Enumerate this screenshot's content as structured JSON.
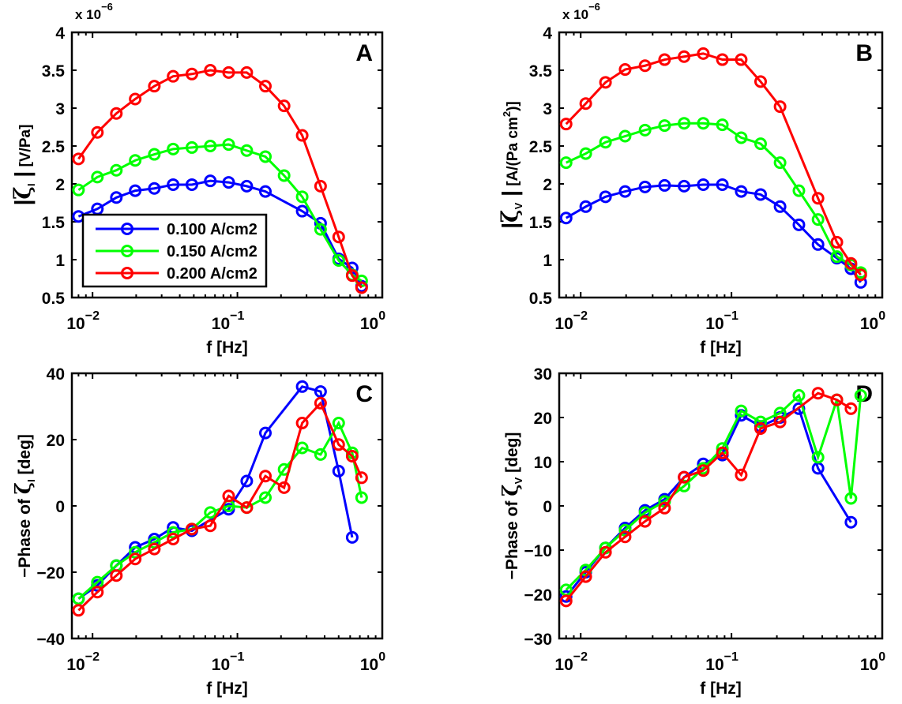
{
  "chart_data": [
    {
      "panel": "A",
      "type": "line",
      "xscale": "log",
      "xlabel": "f [Hz]",
      "ylabel": "|ζI| [V/Pa]",
      "ylabel_parts": {
        "symbol": "ζ",
        "sub": "I",
        "unit": "[V/Pa]"
      },
      "y_multiplier": "x 10^-6",
      "xlim": [
        0.0072,
        1.0
      ],
      "ylim": [
        0.5,
        4
      ],
      "yticks": [
        0.5,
        1,
        1.5,
        2,
        2.5,
        3,
        3.5,
        4
      ],
      "ytick_labels": [
        "0.5",
        "1",
        "1.5",
        "2",
        "2.5",
        "3",
        "3.5",
        "4"
      ],
      "xticks": [
        0.01,
        0.1,
        1
      ],
      "xtick_labels": [
        {
          "base": "10",
          "exp": "-2"
        },
        {
          "base": "10",
          "exp": "-1"
        },
        {
          "base": "10",
          "exp": "0"
        }
      ],
      "legend": {
        "placement": "lower-left",
        "entries": [
          "0.100 A/cm2",
          "0.150 A/cm2",
          "0.200 A/cm2"
        ]
      },
      "series": [
        {
          "name": "0.100 A/cm2",
          "color": "#0000ff",
          "x": [
            0.008,
            0.0108,
            0.0146,
            0.0197,
            0.0267,
            0.036,
            0.0485,
            0.065,
            0.087,
            0.116,
            0.156,
            0.28,
            0.375,
            0.5,
            0.62,
            0.72
          ],
          "y": [
            1.57,
            1.67,
            1.82,
            1.91,
            1.94,
            1.99,
            1.99,
            2.04,
            2.02,
            1.97,
            1.9,
            1.64,
            1.48,
            1.01,
            0.89,
            0.65
          ]
        },
        {
          "name": "0.150 A/cm2",
          "color": "#00ff00",
          "x": [
            0.008,
            0.0108,
            0.0146,
            0.0197,
            0.0267,
            0.036,
            0.0485,
            0.065,
            0.087,
            0.116,
            0.156,
            0.21,
            0.28,
            0.375,
            0.5,
            0.62,
            0.72
          ],
          "y": [
            1.92,
            2.09,
            2.18,
            2.31,
            2.39,
            2.46,
            2.48,
            2.5,
            2.52,
            2.44,
            2.36,
            2.11,
            1.83,
            1.4,
            0.99,
            0.8,
            0.72
          ]
        },
        {
          "name": "0.200 A/cm2",
          "color": "#ff0000",
          "x": [
            0.008,
            0.0108,
            0.0146,
            0.0197,
            0.0267,
            0.036,
            0.0485,
            0.065,
            0.087,
            0.116,
            0.156,
            0.21,
            0.28,
            0.375,
            0.5,
            0.62,
            0.72
          ],
          "y": [
            2.33,
            2.68,
            2.93,
            3.12,
            3.29,
            3.42,
            3.45,
            3.5,
            3.47,
            3.47,
            3.29,
            3.03,
            2.64,
            1.97,
            1.3,
            0.79,
            0.63
          ]
        }
      ]
    },
    {
      "panel": "B",
      "type": "line",
      "xscale": "log",
      "xlabel": "f [Hz]",
      "ylabel": "|ζV| [A/(Pa cm2)]",
      "ylabel_parts": {
        "symbol": "ζ",
        "sub": "V",
        "unit": "[A/(Pa cm",
        "unit_sup": "2",
        "unit_end": ")]"
      },
      "y_multiplier": "x 10^-6",
      "xlim": [
        0.0072,
        1.0
      ],
      "ylim": [
        0.5,
        4
      ],
      "yticks": [
        0.5,
        1,
        1.5,
        2,
        2.5,
        3,
        3.5,
        4
      ],
      "ytick_labels": [
        "0.5",
        "1",
        "1.5",
        "2",
        "2.5",
        "3",
        "3.5",
        "4"
      ],
      "xticks": [
        0.01,
        0.1,
        1
      ],
      "xtick_labels": [
        {
          "base": "10",
          "exp": "-2"
        },
        {
          "base": "10",
          "exp": "-1"
        },
        {
          "base": "10",
          "exp": "0"
        }
      ],
      "series": [
        {
          "name": "0.100 A/cm2",
          "color": "#0000ff",
          "x": [
            0.008,
            0.0108,
            0.0146,
            0.0197,
            0.0267,
            0.036,
            0.0485,
            0.065,
            0.087,
            0.116,
            0.156,
            0.21,
            0.28,
            0.375,
            0.5,
            0.62,
            0.72
          ],
          "y": [
            1.55,
            1.7,
            1.83,
            1.9,
            1.96,
            1.98,
            1.97,
            1.99,
            1.99,
            1.9,
            1.86,
            1.7,
            1.46,
            1.2,
            1.02,
            0.88,
            0.7
          ]
        },
        {
          "name": "0.150 A/cm2",
          "color": "#00ff00",
          "x": [
            0.008,
            0.0108,
            0.0146,
            0.0197,
            0.0267,
            0.036,
            0.0485,
            0.065,
            0.087,
            0.116,
            0.156,
            0.21,
            0.28,
            0.375,
            0.5,
            0.62,
            0.72
          ],
          "y": [
            2.28,
            2.4,
            2.55,
            2.63,
            2.71,
            2.77,
            2.8,
            2.8,
            2.78,
            2.61,
            2.53,
            2.28,
            1.91,
            1.53,
            1.04,
            0.93,
            0.83
          ]
        },
        {
          "name": "0.200 A/cm2",
          "color": "#ff0000",
          "x": [
            0.008,
            0.0108,
            0.0146,
            0.0197,
            0.0267,
            0.036,
            0.0485,
            0.065,
            0.087,
            0.116,
            0.156,
            0.21,
            0.375,
            0.5,
            0.62,
            0.72
          ],
          "y": [
            2.79,
            3.06,
            3.34,
            3.51,
            3.56,
            3.64,
            3.68,
            3.72,
            3.64,
            3.64,
            3.35,
            3.02,
            1.81,
            1.23,
            0.95,
            0.8
          ]
        }
      ]
    },
    {
      "panel": "C",
      "type": "line",
      "xscale": "log",
      "xlabel": "f [Hz]",
      "ylabel": "-Phase of ζI [deg]",
      "ylabel_parts": {
        "prefix": "−Phase of ",
        "symbol": "ζ",
        "sub": "I",
        "unit": " [deg]"
      },
      "xlim": [
        0.0072,
        1.0
      ],
      "ylim": [
        -40,
        40
      ],
      "yticks": [
        -40,
        -20,
        0,
        20,
        40
      ],
      "ytick_labels": [
        "−40",
        "−20",
        "0",
        "20",
        "40"
      ],
      "xticks": [
        0.01,
        0.1,
        1
      ],
      "xtick_labels": [
        {
          "base": "10",
          "exp": "-2"
        },
        {
          "base": "10",
          "exp": "-1"
        },
        {
          "base": "10",
          "exp": "0"
        }
      ],
      "series": [
        {
          "name": "0.100 A/cm2",
          "color": "#0000ff",
          "x": [
            0.008,
            0.0108,
            0.0146,
            0.0197,
            0.0267,
            0.036,
            0.0485,
            0.087,
            0.116,
            0.156,
            0.28,
            0.375,
            0.5,
            0.62
          ],
          "y": [
            -28,
            -24,
            -18,
            -12.5,
            -10,
            -6.5,
            -7.5,
            -1,
            7.5,
            22,
            36,
            34.5,
            10.5,
            -9.5
          ]
        },
        {
          "name": "0.150 A/cm2",
          "color": "#00ff00",
          "x": [
            0.008,
            0.0108,
            0.0146,
            0.0197,
            0.0267,
            0.036,
            0.0485,
            0.065,
            0.087,
            0.116,
            0.156,
            0.21,
            0.28,
            0.375,
            0.5,
            0.62,
            0.72
          ],
          "y": [
            -28,
            -23,
            -18,
            -14,
            -11,
            -8,
            -7,
            -2,
            0,
            -0.5,
            2.5,
            11,
            17.5,
            15.5,
            25,
            16,
            2.5
          ]
        },
        {
          "name": "0.200 A/cm2",
          "color": "#ff0000",
          "x": [
            0.008,
            0.0108,
            0.0146,
            0.0197,
            0.0267,
            0.036,
            0.0485,
            0.065,
            0.087,
            0.116,
            0.156,
            0.21,
            0.28,
            0.375,
            0.5,
            0.62,
            0.72
          ],
          "y": [
            -31.5,
            -26,
            -21,
            -16,
            -13,
            -10,
            -7,
            -6,
            3,
            -0.5,
            9,
            5.5,
            25,
            31,
            18.5,
            15,
            8.5
          ]
        }
      ]
    },
    {
      "panel": "D",
      "type": "line",
      "xscale": "log",
      "xlabel": "f [Hz]",
      "ylabel": "-Phase of ζV [deg]",
      "ylabel_parts": {
        "prefix": "−Phase of ",
        "symbol": "ζ",
        "sub": "V",
        "unit": " [deg]"
      },
      "xlim": [
        0.0072,
        1.0
      ],
      "ylim": [
        -30,
        30
      ],
      "yticks": [
        -30,
        -20,
        -10,
        0,
        10,
        20,
        30
      ],
      "ytick_labels": [
        "−30",
        "−20",
        "−10",
        "0",
        "10",
        "20",
        "30"
      ],
      "xticks": [
        0.01,
        0.1,
        1
      ],
      "xtick_labels": [
        {
          "base": "10",
          "exp": "-2"
        },
        {
          "base": "10",
          "exp": "-1"
        },
        {
          "base": "10",
          "exp": "0"
        }
      ],
      "series": [
        {
          "name": "0.100 A/cm2",
          "color": "#0000ff",
          "x": [
            0.008,
            0.0108,
            0.0146,
            0.0197,
            0.0267,
            0.036,
            0.0485,
            0.065,
            0.087,
            0.116,
            0.156,
            0.21,
            0.28,
            0.375,
            0.62
          ],
          "y": [
            -20.5,
            -15,
            -9.5,
            -5,
            -1,
            1.5,
            6.5,
            9.5,
            11.5,
            20.5,
            18,
            20,
            22,
            8.5,
            -3.7
          ]
        },
        {
          "name": "0.150 A/cm2",
          "color": "#00ff00",
          "x": [
            0.008,
            0.0108,
            0.0146,
            0.0197,
            0.0267,
            0.036,
            0.0485,
            0.065,
            0.087,
            0.116,
            0.156,
            0.21,
            0.28,
            0.375,
            0.5,
            0.62,
            0.72
          ],
          "y": [
            -19,
            -14.5,
            -9.5,
            -5.5,
            -1.5,
            1,
            4.5,
            8.5,
            13,
            21.5,
            19,
            21,
            25,
            11,
            24,
            1.7,
            25
          ]
        },
        {
          "name": "0.200 A/cm2",
          "color": "#ff0000",
          "x": [
            0.008,
            0.0108,
            0.0146,
            0.0197,
            0.0267,
            0.036,
            0.0485,
            0.065,
            0.087,
            0.116,
            0.156,
            0.21,
            0.375,
            0.5,
            0.62
          ],
          "y": [
            -21.5,
            -16,
            -10.5,
            -7,
            -3.5,
            -0.5,
            6.5,
            8,
            12,
            7,
            17.5,
            19,
            25.5,
            24,
            22
          ]
        }
      ]
    }
  ]
}
